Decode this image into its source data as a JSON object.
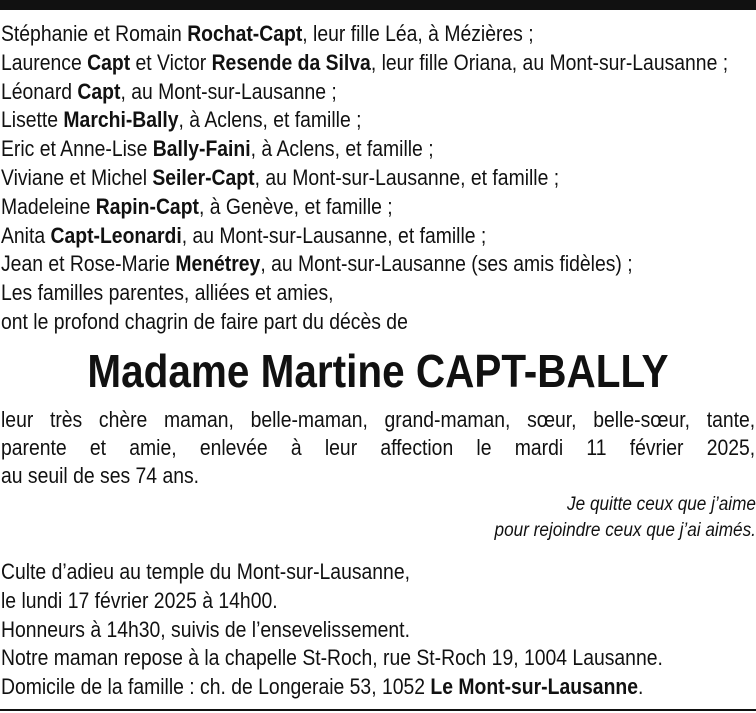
{
  "family_lines": [
    [
      {
        "t": "Stéphanie et Romain "
      },
      {
        "t": "Rochat-Capt",
        "b": true
      },
      {
        "t": ", leur fille Léa, à Mézières ;"
      }
    ],
    [
      {
        "t": "Laurence "
      },
      {
        "t": "Capt",
        "b": true
      },
      {
        "t": " et Victor "
      },
      {
        "t": "Resende da Silva",
        "b": true
      },
      {
        "t": ", leur fille Oriana, au Mont-sur-Lausanne ;"
      }
    ],
    [
      {
        "t": "Léonard "
      },
      {
        "t": "Capt",
        "b": true
      },
      {
        "t": ", au Mont-sur-Lausanne ;"
      }
    ],
    [
      {
        "t": "Lisette "
      },
      {
        "t": "Marchi-Bally",
        "b": true
      },
      {
        "t": ", à Aclens, et famille ;"
      }
    ],
    [
      {
        "t": "Eric et Anne-Lise "
      },
      {
        "t": "Bally-Faini",
        "b": true
      },
      {
        "t": ", à Aclens, et famille ;"
      }
    ],
    [
      {
        "t": "Viviane et Michel "
      },
      {
        "t": "Seiler-Capt",
        "b": true
      },
      {
        "t": ", au Mont-sur-Lausanne, et famille ;"
      }
    ],
    [
      {
        "t": "Madeleine "
      },
      {
        "t": "Rapin-Capt",
        "b": true
      },
      {
        "t": ", à Genève, et famille ;"
      }
    ],
    [
      {
        "t": "Anita "
      },
      {
        "t": "Capt-Leonardi",
        "b": true
      },
      {
        "t": ", au Mont-sur-Lausanne, et famille ;"
      }
    ],
    [
      {
        "t": "Jean et Rose-Marie "
      },
      {
        "t": "Menétrey",
        "b": true
      },
      {
        "t": ", au Mont-sur-Lausanne (ses amis fidèles) ;"
      }
    ],
    [
      {
        "t": "Les familles parentes, alliées et amies,"
      }
    ],
    [
      {
        "t": "ont le profond chagrin de faire part du décès de"
      }
    ]
  ],
  "deceased_name": "Madame Martine CAPT-BALLY",
  "paragraph_lines": [
    "leur très chère maman, belle-maman, grand-maman, sœur, belle-sœur, tante,",
    "parente et amie, enlevée à leur affection le mardi 11 février 2025,",
    "au seuil de ses 74 ans."
  ],
  "quote_lines": [
    "Je quitte ceux que j’aime",
    "pour rejoindre ceux que j’ai aimés."
  ],
  "service_lines": [
    [
      {
        "t": "Culte d’adieu au temple du Mont-sur-Lausanne,"
      }
    ],
    [
      {
        "t": "le lundi 17 février 2025 à 14h00."
      }
    ],
    [
      {
        "t": "Honneurs à 14h30, suivis de l’ensevelissement."
      }
    ],
    [
      {
        "t": "Notre maman repose à la chapelle St-Roch, rue St-Roch 19, 1004 Lausanne."
      }
    ],
    [
      {
        "t": "Domicile de la famille : ch. de Longeraie 53, 1052 "
      },
      {
        "t": "Le Mont-sur-Lausanne",
        "b": true
      },
      {
        "t": "."
      }
    ]
  ]
}
